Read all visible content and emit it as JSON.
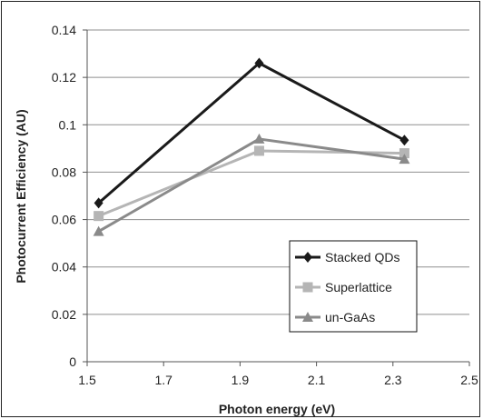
{
  "chart_data": {
    "type": "line",
    "title": "",
    "xlabel": "Photon energy (eV)",
    "ylabel": "Photocurrent Efficiency (AU)",
    "xlim": [
      1.5,
      2.5
    ],
    "ylim": [
      0,
      0.14
    ],
    "x_ticks": [
      "1.5",
      "1.7",
      "1.9",
      "2.1",
      "2.3",
      "2.5"
    ],
    "y_ticks": [
      "0",
      "0.02",
      "0.04",
      "0.06",
      "0.08",
      "0.1",
      "0.12",
      "0.14"
    ],
    "grid": "horizontal",
    "legend_position": "bottom-right",
    "series": [
      {
        "name": "Stacked QDs",
        "marker": "diamond",
        "color": "#1a1a1a",
        "x": [
          1.53,
          1.95,
          2.33
        ],
        "y": [
          0.067,
          0.126,
          0.0935
        ]
      },
      {
        "name": "Superlattice",
        "marker": "square",
        "color": "#b5b5b5",
        "x": [
          1.53,
          1.95,
          2.33
        ],
        "y": [
          0.0615,
          0.089,
          0.088
        ]
      },
      {
        "name": "un-GaAs",
        "marker": "triangle",
        "color": "#8a8a8a",
        "x": [
          1.53,
          1.95,
          2.33
        ],
        "y": [
          0.055,
          0.094,
          0.0855
        ]
      }
    ]
  }
}
